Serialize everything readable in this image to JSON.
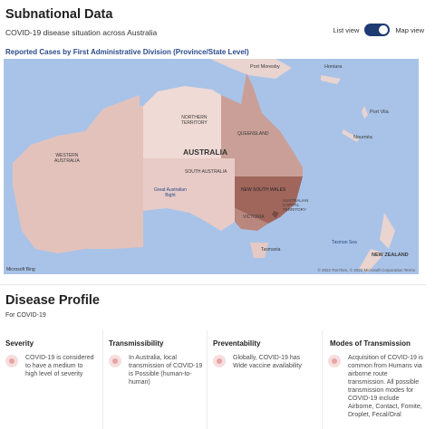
{
  "header": {
    "title": "Subnational Data",
    "subtitle": "COVID-19 disease situation across Australia",
    "list_view_label": "List view",
    "map_view_label": "Map view"
  },
  "map": {
    "title": "Reported Cases by First Administrative Division (Province/State Level)",
    "country_label": "AUSTRALIA",
    "labels": {
      "port_moresby": "Port Moresby",
      "honiara": "Honiara",
      "port_vila": "Port Vila",
      "noumea": "Nouméa",
      "northern_territory": "NORTHERN\nTERRITORY",
      "queensland": "QUEENSLAND",
      "western_australia": "WESTERN\nAUSTRALIA",
      "south_australia": "SOUTH AUSTRALIA",
      "new_south_wales": "NEW SOUTH WALES",
      "victoria": "VICTORIA",
      "act": "AUSTRALIAN\nCAPITAL\nTERRITORY",
      "tasmania": "Tasmania",
      "great_australian_bight": "Great Australian\nBight",
      "tasman_sea": "Tasman Sea",
      "new_zealand": "NEW ZEALAND"
    },
    "attribution": "© 2022 TomTom, © 2022 Microsoft Corporation  Terms",
    "bing_label": "Microsoft Bing"
  },
  "disease_profile": {
    "title": "Disease Profile",
    "subtitle": "For COVID-19"
  },
  "cards": [
    {
      "title": "Severity",
      "body": "COVID-19 is considered\nto have a medium to\nhigh level of severity"
    },
    {
      "title": "Transmissibility",
      "body": "In Australia, local\ntransmission of COVID-19\nis Possible (human-to-\nhuman)"
    },
    {
      "title": "Preventability",
      "body": "Globally, COVID-19 has\nWide vaccine availability"
    },
    {
      "title": "Modes of Transmission",
      "body": "Acquisition of COVID-19 is\ncommon from Humans via\nairborne route\ntransmission. All possible\ntransmission modes for\nCOVID-19 include\nAirborne, Contact, Fomite,\nDroplet, Fecal/Oral"
    }
  ],
  "colors": {
    "accent": "#1f3b73",
    "ocean": "#a9c3e8",
    "land": "#e9d4cf",
    "wa": "#e3c2bc",
    "nt": "#f0dad6",
    "sa": "#e8cbc6",
    "qld": "#c99f97",
    "nsw": "#a0665c",
    "vic": "#b9877e",
    "tas": "#e6c9c3",
    "icon": "#e8a3a3"
  }
}
